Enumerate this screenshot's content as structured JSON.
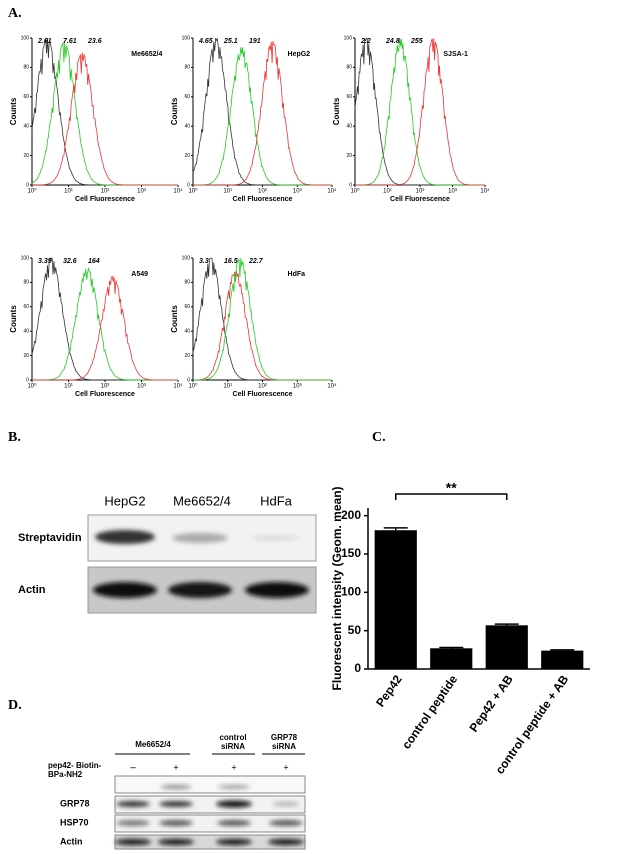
{
  "panel_labels": [
    "A.",
    "B.",
    "C.",
    "D."
  ],
  "chart_data": [
    {
      "type": "flow_histogram",
      "title": "Me6652/4",
      "ylabel": "Counts",
      "xlabel": "Cell Fluorescence",
      "log_x": true,
      "xlim": [
        1,
        10000
      ],
      "xticks": [
        {
          "value": 1,
          "label": "10⁰"
        },
        {
          "value": 10,
          "label": "10¹"
        },
        {
          "value": 100,
          "label": "10²"
        },
        {
          "value": 1000,
          "label": "10³"
        },
        {
          "value": 10000,
          "label": "10⁴"
        }
      ],
      "ylim": [
        0,
        100
      ],
      "yticks": [
        0,
        20,
        40,
        60,
        80,
        100
      ],
      "series": [
        {
          "color": "#333333",
          "mean": 2.61,
          "peak": 100
        },
        {
          "color": "#22cc22",
          "mean": 7.61,
          "peak": 97
        },
        {
          "color": "#ee3333",
          "mean": 23.6,
          "peak": 90
        }
      ]
    },
    {
      "type": "flow_histogram",
      "title": "HepG2",
      "ylabel": "Counts",
      "xlabel": "Cell Fluorescence",
      "log_x": true,
      "xlim": [
        1,
        10000
      ],
      "xticks": [
        {
          "value": 1,
          "label": "10⁰"
        },
        {
          "value": 10,
          "label": "10¹"
        },
        {
          "value": 100,
          "label": "10²"
        },
        {
          "value": 1000,
          "label": "10³"
        },
        {
          "value": 10000,
          "label": "10⁴"
        }
      ],
      "ylim": [
        0,
        100
      ],
      "yticks": [
        0,
        20,
        40,
        60,
        80,
        100
      ],
      "series": [
        {
          "color": "#333333",
          "mean": 4.65,
          "peak": 100
        },
        {
          "color": "#22cc22",
          "mean": 25.1,
          "peak": 94
        },
        {
          "color": "#ee3333",
          "mean": 191,
          "peak": 98
        }
      ]
    },
    {
      "type": "flow_histogram",
      "title": "SJSA-1",
      "ylabel": "Counts",
      "xlabel": "Cell Fluorescence",
      "log_x": true,
      "xlim": [
        1,
        10000
      ],
      "xticks": [
        {
          "value": 1,
          "label": "10⁰"
        },
        {
          "value": 10,
          "label": "10¹"
        },
        {
          "value": 100,
          "label": "10²"
        },
        {
          "value": 1000,
          "label": "10³"
        },
        {
          "value": 10000,
          "label": "10⁴"
        }
      ],
      "ylim": [
        0,
        100
      ],
      "yticks": [
        0,
        20,
        40,
        60,
        80,
        100
      ],
      "series": [
        {
          "color": "#333333",
          "mean": 2.2,
          "peak": 100
        },
        {
          "color": "#22cc22",
          "mean": 24.8,
          "peak": 100
        },
        {
          "color": "#ee3333",
          "mean": 255,
          "peak": 100
        }
      ]
    },
    {
      "type": "flow_histogram",
      "title": "A549",
      "ylabel": "Counts",
      "xlabel": "Cell Fluorescence",
      "log_x": true,
      "xlim": [
        1,
        10000
      ],
      "xticks": [
        {
          "value": 1,
          "label": "10⁰"
        },
        {
          "value": 10,
          "label": "10¹"
        },
        {
          "value": 100,
          "label": "10²"
        },
        {
          "value": 1000,
          "label": "10³"
        },
        {
          "value": 10000,
          "label": "10⁴"
        }
      ],
      "ylim": [
        0,
        100
      ],
      "yticks": [
        0,
        20,
        40,
        60,
        80,
        100
      ],
      "series": [
        {
          "color": "#333333",
          "mean": 3.39,
          "peak": 100
        },
        {
          "color": "#22cc22",
          "mean": 32.6,
          "peak": 92
        },
        {
          "color": "#ee3333",
          "mean": 164,
          "peak": 85
        }
      ]
    },
    {
      "type": "flow_histogram",
      "title": "HdFa",
      "ylabel": "Counts",
      "xlabel": "Cell Fluorescence",
      "log_x": true,
      "xlim": [
        1,
        10000
      ],
      "xticks": [
        {
          "value": 1,
          "label": "10⁰"
        },
        {
          "value": 10,
          "label": "10¹"
        },
        {
          "value": 100,
          "label": "10²"
        },
        {
          "value": 1000,
          "label": "10³"
        },
        {
          "value": 10000,
          "label": "10⁴"
        }
      ],
      "ylim": [
        0,
        100
      ],
      "yticks": [
        0,
        20,
        40,
        60,
        80,
        100
      ],
      "series": [
        {
          "color": "#333333",
          "mean": 3.3,
          "peak": 100
        },
        {
          "color": "#ee3333",
          "mean": 16.5,
          "peak": 90
        },
        {
          "color": "#22cc22",
          "mean": 22.7,
          "peak": 100
        }
      ]
    },
    {
      "type": "bar",
      "ylabel": "Fluorescent intensity (Geom. mean)",
      "categories": [
        "Pep42",
        "control peptide",
        "Pep42 + AB",
        "control peptide + AB"
      ],
      "values": [
        181,
        27,
        57,
        24
      ],
      "errors": [
        3,
        1,
        1.5,
        1
      ],
      "color": "#000000",
      "ylim": [
        0,
        210
      ],
      "yticks": [
        0,
        50,
        100,
        150,
        200
      ],
      "annotation": "**"
    }
  ],
  "blot_b": {
    "lanes": [
      "HepG2",
      "Me6652/4",
      "HdFa"
    ],
    "rows": [
      "Streptavidin",
      "Actin"
    ]
  },
  "blot_d": {
    "groups": [
      "Me6652/4",
      "control siRNA",
      "GRP78 siRNA"
    ],
    "treatment": "pep42- Biotin-BPa-NH2",
    "signs": [
      "–",
      "+",
      "+",
      "+"
    ],
    "rows": [
      "GRP78",
      "HSP70",
      "Actin"
    ]
  }
}
